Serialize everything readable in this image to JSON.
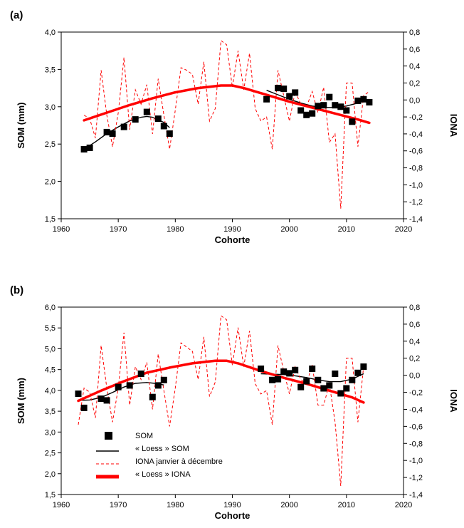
{
  "chart_data": [
    {
      "type": "scatter",
      "panel_label": "(a)",
      "xlabel": "Cohorte",
      "ylabel": "SOM (mm)",
      "y2label": "IONA",
      "xlim": [
        1960,
        2020
      ],
      "ylim": [
        1.5,
        4.0
      ],
      "y2lim": [
        -1.4,
        0.8
      ],
      "x_ticks": [
        1960,
        1970,
        1980,
        1990,
        2000,
        2010,
        2020
      ],
      "y_ticks": [
        "1,5",
        "2,0",
        "2,5",
        "3,0",
        "3,5",
        "4,0"
      ],
      "y2_ticks": [
        "-1,4",
        "-1,2",
        "-1,0",
        "-0,8",
        "-0,6",
        "-0,4",
        "-0,2",
        "0,0",
        "0,2",
        "0,4",
        "0,6",
        "0,8"
      ],
      "series": [
        {
          "key": "som",
          "axis": "left",
          "style": "square-marker",
          "color": "#000000",
          "points": [
            [
              1964,
              2.43
            ],
            [
              1965,
              2.45
            ],
            [
              1968,
              2.66
            ],
            [
              1969,
              2.64
            ],
            [
              1971,
              2.73
            ],
            [
              1973,
              2.83
            ],
            [
              1975,
              2.93
            ],
            [
              1977,
              2.84
            ],
            [
              1978,
              2.74
            ],
            [
              1979,
              2.64
            ],
            [
              1996,
              3.1
            ],
            [
              1998,
              3.25
            ],
            [
              1999,
              3.24
            ],
            [
              2000,
              3.14
            ],
            [
              2001,
              3.19
            ],
            [
              2002,
              2.95
            ],
            [
              2003,
              2.89
            ],
            [
              2004,
              2.91
            ],
            [
              2005,
              3.01
            ],
            [
              2006,
              3.02
            ],
            [
              2007,
              3.13
            ],
            [
              2008,
              3.02
            ],
            [
              2009,
              3.0
            ],
            [
              2010,
              2.95
            ],
            [
              2011,
              2.8
            ],
            [
              2012,
              3.08
            ],
            [
              2013,
              3.1
            ],
            [
              2014,
              3.06
            ]
          ]
        },
        {
          "key": "som-loess",
          "axis": "left",
          "style": "thin-solid",
          "color": "#000000",
          "segments": [
            [
              [
                1964,
                2.43
              ],
              [
                1966,
                2.53
              ],
              [
                1968,
                2.64
              ],
              [
                1970,
                2.73
              ],
              [
                1972,
                2.81
              ],
              [
                1974,
                2.86
              ],
              [
                1975,
                2.87
              ],
              [
                1976,
                2.86
              ],
              [
                1978,
                2.79
              ],
              [
                1979,
                2.72
              ]
            ],
            [
              [
                1996,
                3.22
              ],
              [
                1998,
                3.16
              ],
              [
                2000,
                3.1
              ],
              [
                2002,
                3.05
              ],
              [
                2004,
                3.01
              ],
              [
                2006,
                2.99
              ],
              [
                2008,
                2.99
              ],
              [
                2010,
                3.01
              ],
              [
                2012,
                3.05
              ],
              [
                2014,
                3.1
              ]
            ]
          ]
        },
        {
          "key": "iona",
          "axis": "right",
          "style": "thin-dashed",
          "color": "#ff0000",
          "points": [
            [
              1964,
              -0.18
            ],
            [
              1965,
              -0.22
            ],
            [
              1966,
              -0.45
            ],
            [
              1967,
              0.35
            ],
            [
              1968,
              -0.18
            ],
            [
              1969,
              -0.55
            ],
            [
              1970,
              -0.15
            ],
            [
              1971,
              0.5
            ],
            [
              1972,
              -0.35
            ],
            [
              1973,
              0.12
            ],
            [
              1974,
              -0.05
            ],
            [
              1975,
              0.18
            ],
            [
              1976,
              -0.4
            ],
            [
              1977,
              0.25
            ],
            [
              1978,
              -0.18
            ],
            [
              1979,
              -0.58
            ],
            [
              1980,
              -0.12
            ],
            [
              1981,
              0.38
            ],
            [
              1982,
              0.35
            ],
            [
              1983,
              0.3
            ],
            [
              1984,
              -0.05
            ],
            [
              1985,
              0.45
            ],
            [
              1986,
              -0.25
            ],
            [
              1987,
              -0.1
            ],
            [
              1988,
              0.7
            ],
            [
              1989,
              0.65
            ],
            [
              1990,
              0.15
            ],
            [
              1991,
              0.58
            ],
            [
              1992,
              0.12
            ],
            [
              1993,
              0.55
            ],
            [
              1994,
              -0.1
            ],
            [
              1995,
              -0.25
            ],
            [
              1996,
              -0.2
            ],
            [
              1997,
              -0.58
            ],
            [
              1998,
              0.35
            ],
            [
              1999,
              0.05
            ],
            [
              2000,
              -0.25
            ],
            [
              2001,
              0.1
            ],
            [
              2002,
              -0.05
            ],
            [
              2003,
              -0.08
            ],
            [
              2004,
              0.1
            ],
            [
              2005,
              -0.15
            ],
            [
              2006,
              0.15
            ],
            [
              2007,
              -0.5
            ],
            [
              2008,
              -0.4
            ],
            [
              2009,
              -1.28
            ],
            [
              2010,
              0.2
            ],
            [
              2011,
              0.2
            ],
            [
              2012,
              -0.55
            ],
            [
              2013,
              0.05
            ],
            [
              2014,
              0.1
            ]
          ]
        },
        {
          "key": "iona-loess",
          "axis": "right",
          "style": "thick-solid",
          "color": "#ff0000",
          "points": [
            [
              1964,
              -0.24
            ],
            [
              1968,
              -0.15
            ],
            [
              1972,
              -0.06
            ],
            [
              1976,
              0.02
            ],
            [
              1980,
              0.09
            ],
            [
              1984,
              0.14
            ],
            [
              1988,
              0.17
            ],
            [
              1990,
              0.17
            ],
            [
              1992,
              0.14
            ],
            [
              1996,
              0.06
            ],
            [
              2000,
              -0.02
            ],
            [
              2004,
              -0.09
            ],
            [
              2008,
              -0.16
            ],
            [
              2012,
              -0.23
            ],
            [
              2014,
              -0.27
            ]
          ]
        }
      ]
    },
    {
      "type": "scatter",
      "panel_label": "(b)",
      "xlabel": "Cohorte",
      "ylabel": "SOM (mm)",
      "y2label": "IONA",
      "xlim": [
        1960,
        2020
      ],
      "ylim": [
        1.5,
        6.0
      ],
      "y2lim": [
        -1.4,
        0.8
      ],
      "x_ticks": [
        1960,
        1970,
        1980,
        1990,
        2000,
        2010,
        2020
      ],
      "y_ticks": [
        "1,5",
        "2,0",
        "2,5",
        "3,0",
        "3,5",
        "4,0",
        "4,5",
        "5,0",
        "5,5",
        "6,0"
      ],
      "y2_ticks": [
        "-1,4",
        "-1,2",
        "-1,0",
        "-0,8",
        "-0,6",
        "-0,4",
        "-0,2",
        "0,0",
        "0,2",
        "0,4",
        "0,6",
        "0,8"
      ],
      "legend": {
        "placement": "lower-left",
        "items": [
          {
            "key": "som",
            "label": "SOM"
          },
          {
            "key": "som-loess",
            "label": "« Loess » SOM"
          },
          {
            "key": "iona",
            "label": "IONA janvier à décembre"
          },
          {
            "key": "iona-loess",
            "label": "« Loess » IONA"
          }
        ]
      },
      "series": [
        {
          "key": "som",
          "axis": "left",
          "style": "square-marker",
          "color": "#000000",
          "points": [
            [
              1963,
              3.92
            ],
            [
              1964,
              3.58
            ],
            [
              1967,
              3.8
            ],
            [
              1968,
              3.76
            ],
            [
              1970,
              4.08
            ],
            [
              1972,
              4.12
            ],
            [
              1974,
              4.4
            ],
            [
              1976,
              3.84
            ],
            [
              1977,
              4.12
            ],
            [
              1978,
              4.25
            ],
            [
              1995,
              4.52
            ],
            [
              1997,
              4.25
            ],
            [
              1998,
              4.27
            ],
            [
              1999,
              4.45
            ],
            [
              2000,
              4.41
            ],
            [
              2001,
              4.49
            ],
            [
              2002,
              4.08
            ],
            [
              2003,
              4.22
            ],
            [
              2004,
              4.52
            ],
            [
              2005,
              4.25
            ],
            [
              2006,
              4.05
            ],
            [
              2007,
              4.12
            ],
            [
              2008,
              4.4
            ],
            [
              2009,
              3.93
            ],
            [
              2010,
              4.05
            ],
            [
              2011,
              4.25
            ],
            [
              2012,
              4.42
            ],
            [
              2013,
              4.57
            ]
          ]
        },
        {
          "key": "som-loess",
          "axis": "left",
          "style": "thin-solid",
          "color": "#000000",
          "segments": [
            [
              [
                1963,
                3.76
              ],
              [
                1965,
                3.77
              ],
              [
                1967,
                3.83
              ],
              [
                1969,
                3.95
              ],
              [
                1971,
                4.08
              ],
              [
                1973,
                4.17
              ],
              [
                1975,
                4.19
              ],
              [
                1977,
                4.16
              ],
              [
                1978,
                4.13
              ]
            ],
            [
              [
                1995,
                4.4
              ],
              [
                1997,
                4.39
              ],
              [
                1999,
                4.38
              ],
              [
                2001,
                4.35
              ],
              [
                2003,
                4.31
              ],
              [
                2005,
                4.25
              ],
              [
                2007,
                4.21
              ],
              [
                2009,
                4.21
              ],
              [
                2011,
                4.27
              ],
              [
                2013,
                4.4
              ]
            ]
          ]
        },
        {
          "key": "iona",
          "axis": "right",
          "style": "thin-dashed",
          "color": "#ff0000",
          "points": [
            [
              1963,
              -0.58
            ],
            [
              1964,
              -0.15
            ],
            [
              1965,
              -0.2
            ],
            [
              1966,
              -0.5
            ],
            [
              1967,
              0.35
            ],
            [
              1968,
              -0.15
            ],
            [
              1969,
              -0.55
            ],
            [
              1970,
              -0.15
            ],
            [
              1971,
              0.5
            ],
            [
              1972,
              -0.35
            ],
            [
              1973,
              0.1
            ],
            [
              1974,
              -0.05
            ],
            [
              1975,
              0.15
            ],
            [
              1976,
              -0.4
            ],
            [
              1977,
              0.25
            ],
            [
              1978,
              -0.18
            ],
            [
              1979,
              -0.6
            ],
            [
              1980,
              -0.15
            ],
            [
              1981,
              0.38
            ],
            [
              1982,
              0.33
            ],
            [
              1983,
              0.28
            ],
            [
              1984,
              -0.05
            ],
            [
              1985,
              0.45
            ],
            [
              1986,
              -0.25
            ],
            [
              1987,
              -0.08
            ],
            [
              1988,
              0.7
            ],
            [
              1989,
              0.65
            ],
            [
              1990,
              0.12
            ],
            [
              1991,
              0.56
            ],
            [
              1992,
              0.1
            ],
            [
              1993,
              0.52
            ],
            [
              1994,
              -0.1
            ],
            [
              1995,
              -0.22
            ],
            [
              1996,
              -0.18
            ],
            [
              1997,
              -0.58
            ],
            [
              1998,
              0.35
            ],
            [
              1999,
              0.05
            ],
            [
              2000,
              -0.22
            ],
            [
              2001,
              0.1
            ],
            [
              2002,
              -0.05
            ],
            [
              2003,
              -0.1
            ],
            [
              2004,
              0.12
            ],
            [
              2005,
              -0.35
            ],
            [
              2006,
              -0.35
            ],
            [
              2007,
              -0.1
            ],
            [
              2008,
              -0.55
            ],
            [
              2009,
              -1.3
            ],
            [
              2010,
              0.2
            ],
            [
              2011,
              0.2
            ],
            [
              2012,
              -0.55
            ],
            [
              2013,
              0.1
            ]
          ]
        },
        {
          "key": "iona-loess",
          "axis": "right",
          "style": "thick-solid",
          "color": "#ff0000",
          "points": [
            [
              1963,
              -0.3
            ],
            [
              1967,
              -0.18
            ],
            [
              1971,
              -0.07
            ],
            [
              1975,
              0.03
            ],
            [
              1979,
              0.09
            ],
            [
              1983,
              0.14
            ],
            [
              1987,
              0.17
            ],
            [
              1989,
              0.17
            ],
            [
              1991,
              0.14
            ],
            [
              1995,
              0.05
            ],
            [
              1999,
              -0.03
            ],
            [
              2003,
              -0.1
            ],
            [
              2007,
              -0.18
            ],
            [
              2011,
              -0.26
            ],
            [
              2013,
              -0.32
            ]
          ]
        }
      ]
    }
  ]
}
